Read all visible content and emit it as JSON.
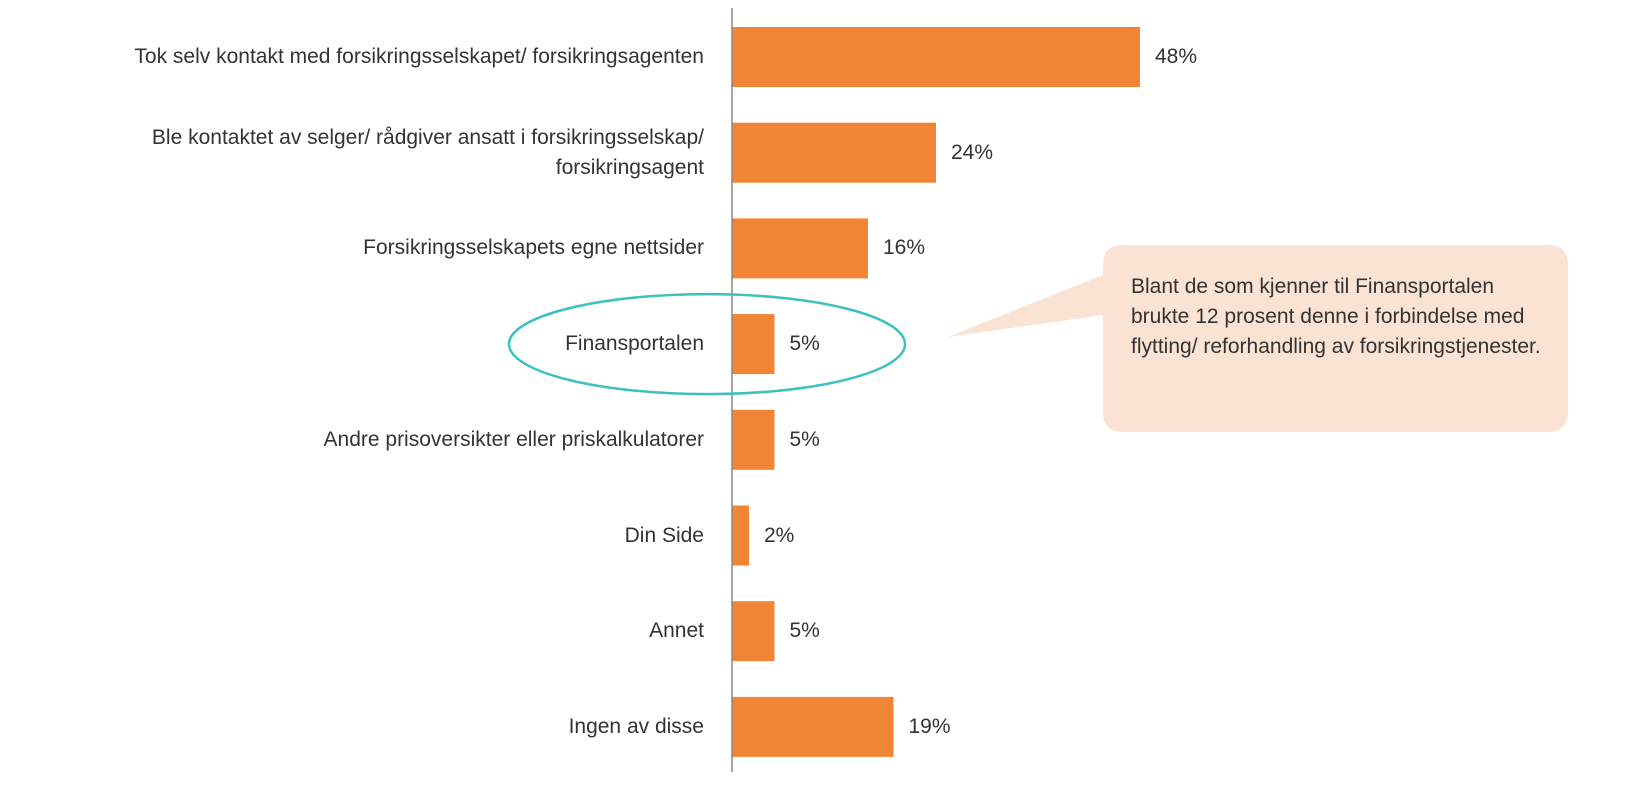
{
  "chart_data": {
    "type": "bar",
    "orientation": "horizontal",
    "categories": [
      "Tok selv kontakt med forsikringsselskapet/ forsikringsagenten",
      "Ble kontaktet av selger/ rådgiver ansatt i forsikringsselskap/ forsikringsagent",
      "Forsikringsselskapets egne nettsider",
      "Finansportalen",
      "Andre prisoversikter eller priskalkulatorer",
      "Din Side",
      "Annet",
      "Ingen av disse"
    ],
    "values": [
      48,
      24,
      16,
      5,
      5,
      2,
      5,
      19
    ],
    "value_labels": [
      "48%",
      "24%",
      "16%",
      "5%",
      "5%",
      "2%",
      "5%",
      "19%"
    ],
    "color": "#f08535",
    "highlight_color": "#3cc0c0",
    "annotation": "Blant de som kjenner til Finansportalen brukte 12 prosent denne i forbindelse med flytting/ reforhandling av forsikringstjenester."
  }
}
